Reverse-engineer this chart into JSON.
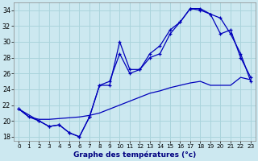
{
  "xlabel": "Graphe des températures (°c)",
  "background_color": "#cce8f0",
  "grid_color": "#aad4dc",
  "line_color": "#0000bb",
  "ylim": [
    17.5,
    35
  ],
  "xlim": [
    -0.5,
    23.5
  ],
  "yticks": [
    18,
    20,
    22,
    24,
    26,
    28,
    30,
    32,
    34
  ],
  "xticks": [
    0,
    1,
    2,
    3,
    4,
    5,
    6,
    7,
    8,
    9,
    10,
    11,
    12,
    13,
    14,
    15,
    16,
    17,
    18,
    19,
    20,
    21,
    22,
    23
  ],
  "line1_x": [
    0,
    1,
    2,
    3,
    4,
    5,
    6,
    7,
    8,
    9,
    10,
    11,
    12,
    13,
    14,
    15,
    16,
    17,
    18,
    19,
    20,
    21,
    22,
    23
  ],
  "line1_y": [
    21.5,
    20.5,
    20.0,
    19.3,
    19.5,
    18.5,
    18.0,
    20.5,
    24.5,
    25.0,
    28.5,
    26.0,
    26.5,
    28.0,
    28.5,
    31.0,
    32.5,
    34.2,
    34.2,
    33.5,
    33.0,
    31.0,
    28.5,
    25.0
  ],
  "line2_x": [
    0,
    2,
    3,
    4,
    5,
    6,
    7,
    8,
    9,
    10,
    11,
    12,
    13,
    14,
    15,
    16,
    17,
    18,
    19,
    20,
    21,
    22,
    23
  ],
  "line2_y": [
    21.5,
    20.0,
    19.3,
    19.5,
    18.5,
    18.0,
    20.5,
    24.5,
    24.5,
    30.0,
    26.5,
    26.5,
    28.5,
    29.5,
    31.5,
    32.5,
    34.2,
    34.0,
    33.5,
    31.0,
    31.5,
    28.0,
    25.5
  ],
  "line3_x": [
    0,
    1,
    2,
    3,
    4,
    5,
    6,
    7,
    8,
    9,
    10,
    11,
    12,
    13,
    14,
    15,
    16,
    17,
    18,
    19,
    20,
    21,
    22,
    23
  ],
  "line3_y": [
    21.5,
    20.5,
    20.2,
    20.2,
    20.3,
    20.4,
    20.5,
    20.7,
    21.0,
    21.5,
    22.0,
    22.5,
    23.0,
    23.5,
    23.8,
    24.2,
    24.5,
    24.8,
    25.0,
    24.5,
    24.5,
    24.5,
    25.5,
    25.2
  ]
}
